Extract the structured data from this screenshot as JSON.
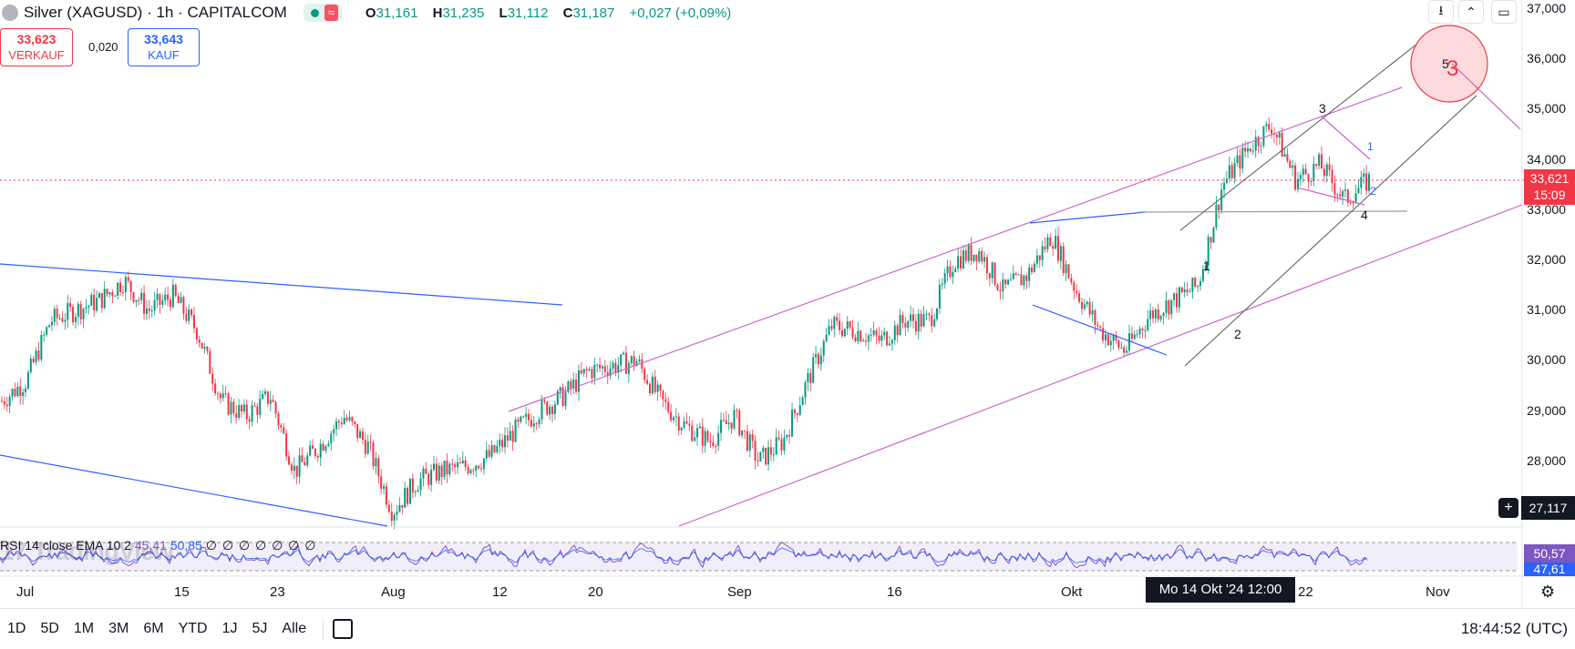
{
  "header": {
    "title": "Silver (XAGUSD) · 1h · CAPITALCOM",
    "wave_icon": "≈",
    "ohlc": {
      "o_label": "O",
      "o": "31,161",
      "h_label": "H",
      "h": "31,235",
      "l_label": "L",
      "l": "31,112",
      "c_label": "C",
      "c": "31,187",
      "change": "+0,027 (+0,09%)"
    }
  },
  "trade": {
    "sell_price": "33,623",
    "sell_label": "VERKAUF",
    "spread": "0,020",
    "buy_price": "33,643",
    "buy_label": "KAUF"
  },
  "toolbar_icons": [
    "download-icon",
    "collapse-icon",
    "fullscreen-icon"
  ],
  "y_axis": [
    "37,000",
    "36,000",
    "35,000",
    "34,000",
    "33,000",
    "32,000",
    "31,000",
    "30,000",
    "29,000",
    "28,000"
  ],
  "price_tag": {
    "price": "33,621",
    "countdown": "15:09",
    "color": "#f23645"
  },
  "crosshair_price": "27,117",
  "wave_labels": {
    "w3_top": "3",
    "w5": "5",
    "w3_circle": "3",
    "w1_small": "1",
    "w2_small": "2",
    "w4": "4",
    "w1": "1",
    "w2": "2"
  },
  "rsi": {
    "name": "RSI",
    "source": "14 close EMA 10 2",
    "value1": "45,41",
    "value2": "50,85",
    "states": "∅ ∅ ∅ ∅ ∅ ∅ ∅",
    "tag1": "50,57",
    "tag2": "47,61"
  },
  "watermark": "17 TradingView",
  "x_axis": [
    "Jul",
    "15",
    "23",
    "Aug",
    "12",
    "20",
    "Sep",
    "16",
    "Okt",
    "22",
    "Nov"
  ],
  "crosshair_date": "Mo 14 Okt '24   12:00",
  "ranges": [
    "1D",
    "5D",
    "1M",
    "3M",
    "6M",
    "YTD",
    "1J",
    "5J",
    "Alle"
  ],
  "clock": "18:44:52 (UTC)",
  "colors": {
    "up": "#089981",
    "down": "#f23645",
    "channel": "#cc66cc",
    "trend": "#2962ff",
    "rsi": "#7e57c2"
  },
  "chart_data": {
    "type": "candlestick",
    "title": "Silver (XAGUSD) · 1h · CAPITALCOM",
    "y_range": [
      27.1,
      37.0
    ],
    "y_ticks": [
      37,
      36,
      35,
      34,
      33,
      32,
      31,
      30,
      29,
      28
    ],
    "x_ticks": [
      "Jul",
      "15",
      "23",
      "Aug",
      "12",
      "20",
      "Sep",
      "16",
      "Okt",
      "22",
      "Nov"
    ],
    "current_price": 33.621,
    "close_path": [
      {
        "x": "Jul",
        "y": 29.2
      },
      {
        "x": "Jul 3",
        "y": 29.6
      },
      {
        "x": "Jul 5",
        "y": 30.8
      },
      {
        "x": "Jul 8",
        "y": 31.0
      },
      {
        "x": "Jul 10",
        "y": 31.2
      },
      {
        "x": "Jul 12",
        "y": 31.6
      },
      {
        "x": "Jul 15",
        "y": 31.0
      },
      {
        "x": "Jul 17",
        "y": 31.3
      },
      {
        "x": "Jul 19",
        "y": 30.6
      },
      {
        "x": "Jul 22",
        "y": 29.2
      },
      {
        "x": "Jul 23",
        "y": 28.9
      },
      {
        "x": "Jul 24",
        "y": 29.3
      },
      {
        "x": "Jul 26",
        "y": 27.8
      },
      {
        "x": "Jul 29",
        "y": 28.3
      },
      {
        "x": "Jul 31",
        "y": 28.9
      },
      {
        "x": "Aug",
        "y": 28.3
      },
      {
        "x": "Aug 5",
        "y": 27.0
      },
      {
        "x": "Aug 7",
        "y": 27.6
      },
      {
        "x": "Aug 9",
        "y": 27.8
      },
      {
        "x": "Aug 12",
        "y": 27.9
      },
      {
        "x": "Aug 14",
        "y": 28.1
      },
      {
        "x": "Aug 16",
        "y": 28.6
      },
      {
        "x": "Aug 19",
        "y": 29.0
      },
      {
        "x": "Aug 20",
        "y": 29.3
      },
      {
        "x": "Aug 22",
        "y": 29.8
      },
      {
        "x": "Aug 26",
        "y": 29.9
      },
      {
        "x": "Aug 28",
        "y": 30.0
      },
      {
        "x": "Aug 30",
        "y": 29.2
      },
      {
        "x": "Sep",
        "y": 28.7
      },
      {
        "x": "Sep 4",
        "y": 28.4
      },
      {
        "x": "Sep 6",
        "y": 28.9
      },
      {
        "x": "Sep 9",
        "y": 28.0
      },
      {
        "x": "Sep 11",
        "y": 28.4
      },
      {
        "x": "Sep 13",
        "y": 29.6
      },
      {
        "x": "Sep 16",
        "y": 30.7
      },
      {
        "x": "Sep 18",
        "y": 30.6
      },
      {
        "x": "Sep 20",
        "y": 30.4
      },
      {
        "x": "Sep 23",
        "y": 30.8
      },
      {
        "x": "Sep 25",
        "y": 30.8
      },
      {
        "x": "Sep 26",
        "y": 32.0
      },
      {
        "x": "Sep 27",
        "y": 32.2
      },
      {
        "x": "Sep 30",
        "y": 31.4
      },
      {
        "x": "Okt 2",
        "y": 31.7
      },
      {
        "x": "Okt 4",
        "y": 32.5
      },
      {
        "x": "Okt 7",
        "y": 31.4
      },
      {
        "x": "Okt 9",
        "y": 30.6
      },
      {
        "x": "Okt 10",
        "y": 30.2
      },
      {
        "x": "Okt 14",
        "y": 30.9
      },
      {
        "x": "Okt 16",
        "y": 31.2
      },
      {
        "x": "Okt 18",
        "y": 31.5
      },
      {
        "x": "Okt 21",
        "y": 33.5
      },
      {
        "x": "Okt 22",
        "y": 34.2
      },
      {
        "x": "Okt 23",
        "y": 34.7
      },
      {
        "x": "Okt 24",
        "y": 33.6
      },
      {
        "x": "Okt 25",
        "y": 33.9
      },
      {
        "x": "Okt 28",
        "y": 33.2
      },
      {
        "x": "Okt 29",
        "y": 33.6
      }
    ],
    "indicator": {
      "name": "RSI",
      "values": [
        45.41,
        50.85
      ]
    }
  }
}
